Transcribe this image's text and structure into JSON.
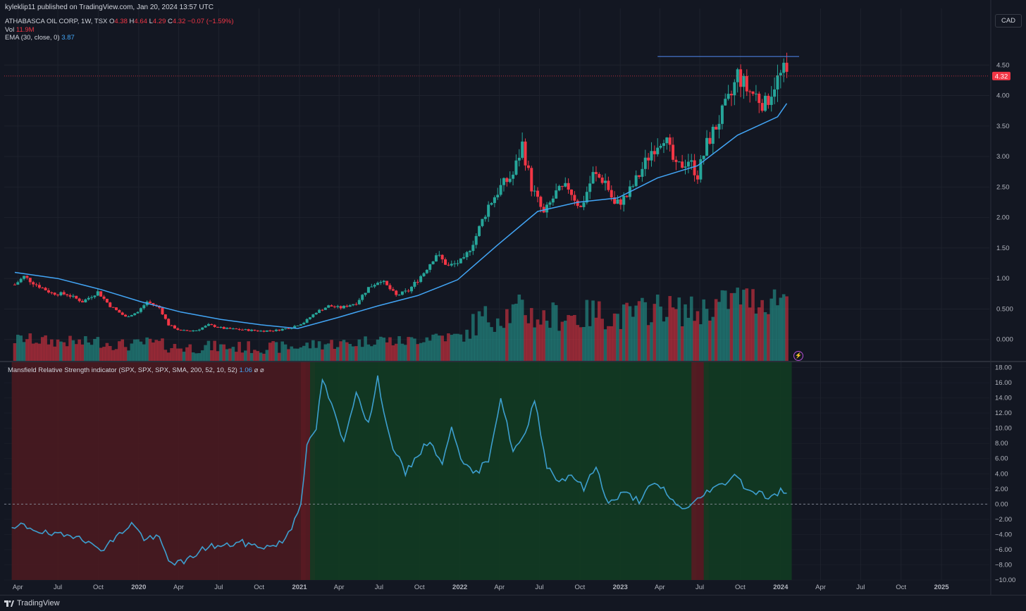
{
  "header": {
    "published": "kyleklip11 published on TradingView.com, Jan 20, 2024 13:57 UTC",
    "symbol": "ATHABASCA OIL CORP, 1W, TSX",
    "ohlc": {
      "o_label": "O",
      "o": "4.38",
      "h_label": "H",
      "h": "4.64",
      "l_label": "L",
      "l": "4.29",
      "c_label": "C",
      "c": "4.32",
      "change": "−0.07 (−1.59%)"
    },
    "vol_label": "Vol",
    "vol_value": "11.9M",
    "ema_label": "EMA (30, close, 0)",
    "ema_value": "3.87",
    "currency_button": "CAD"
  },
  "indicator": {
    "label": "Mansfield Relative Strength indicator (SPX, SPX, SPX, SMA, 200, 52, 10, 52)",
    "value": "1.06",
    "extra": "⌀  ⌀"
  },
  "footer": {
    "brand": "TradingView"
  },
  "colors": {
    "background": "#131722",
    "up": "#26a69a",
    "down": "#f23645",
    "ema": "#42a5f5",
    "rs_line": "#3d9fcf",
    "bg_red": "#4a1a20",
    "bg_green": "#123b22",
    "grid": "#1e222d"
  },
  "icons": [
    "tradingview-logo-icon",
    "lightning-icon"
  ],
  "chart_data": [
    {
      "type": "candlestick",
      "title": "ATHABASCA OIL CORP, 1W, TSX",
      "ylim": [
        -0.35,
        4.85
      ],
      "y_ticks": [
        "0.000",
        "0.500",
        "1.00",
        "1.50",
        "2.00",
        "2.50",
        "3.00",
        "3.50",
        "4.00",
        "4.50"
      ],
      "last_price": "4.32",
      "x_ticks": [
        "Apr",
        "Jul",
        "Oct",
        "2020",
        "Apr",
        "Jul",
        "Oct",
        "2021",
        "Apr",
        "Jul",
        "Oct",
        "2022",
        "Apr",
        "Jul",
        "Oct",
        "2023",
        "Apr",
        "Jul",
        "Oct",
        "2024",
        "Apr",
        "Jul",
        "Oct",
        "2025"
      ],
      "close_path": [
        [
          "2019-03-25",
          0.9
        ],
        [
          "2019-04-15",
          1.03
        ],
        [
          "2019-05-13",
          0.9
        ],
        [
          "2019-06-17",
          0.76
        ],
        [
          "2019-07-22",
          0.74
        ],
        [
          "2019-08-26",
          0.62
        ],
        [
          "2019-09-30",
          0.78
        ],
        [
          "2019-10-28",
          0.55
        ],
        [
          "2019-12-02",
          0.37
        ],
        [
          "2019-12-30",
          0.45
        ],
        [
          "2020-01-20",
          0.62
        ],
        [
          "2020-02-17",
          0.52
        ],
        [
          "2020-03-09",
          0.24
        ],
        [
          "2020-04-06",
          0.14
        ],
        [
          "2020-05-11",
          0.15
        ],
        [
          "2020-06-08",
          0.24
        ],
        [
          "2020-07-13",
          0.18
        ],
        [
          "2020-08-24",
          0.16
        ],
        [
          "2020-10-05",
          0.14
        ],
        [
          "2020-11-09",
          0.15
        ],
        [
          "2020-12-14",
          0.2
        ],
        [
          "2021-01-11",
          0.28
        ],
        [
          "2021-02-08",
          0.45
        ],
        [
          "2021-03-08",
          0.55
        ],
        [
          "2021-04-05",
          0.52
        ],
        [
          "2021-05-10",
          0.6
        ],
        [
          "2021-06-07",
          0.85
        ],
        [
          "2021-07-05",
          0.98
        ],
        [
          "2021-08-09",
          0.72
        ],
        [
          "2021-09-06",
          0.8
        ],
        [
          "2021-10-11",
          1.1
        ],
        [
          "2021-11-08",
          1.4
        ],
        [
          "2021-12-06",
          1.2
        ],
        [
          "2022-01-10",
          1.3
        ],
        [
          "2022-02-07",
          1.7
        ],
        [
          "2022-03-07",
          2.2
        ],
        [
          "2022-04-04",
          2.5
        ],
        [
          "2022-05-02",
          2.7
        ],
        [
          "2022-05-23",
          3.2
        ],
        [
          "2022-06-13",
          2.5
        ],
        [
          "2022-07-11",
          2.05
        ],
        [
          "2022-08-08",
          2.4
        ],
        [
          "2022-09-05",
          2.5
        ],
        [
          "2022-10-03",
          2.15
        ],
        [
          "2022-10-31",
          2.7
        ],
        [
          "2022-11-28",
          2.6
        ],
        [
          "2022-12-19",
          2.2
        ],
        [
          "2023-01-16",
          2.35
        ],
        [
          "2023-02-13",
          2.7
        ],
        [
          "2023-03-13",
          3.1
        ],
        [
          "2023-04-10",
          3.35
        ],
        [
          "2023-05-08",
          2.8
        ],
        [
          "2023-06-05",
          2.95
        ],
        [
          "2023-06-26",
          2.7
        ],
        [
          "2023-07-17",
          3.2
        ],
        [
          "2023-08-14",
          3.6
        ],
        [
          "2023-09-11",
          4.0
        ],
        [
          "2023-09-25",
          4.35
        ],
        [
          "2023-10-16",
          4.1
        ],
        [
          "2023-11-06",
          4.0
        ],
        [
          "2023-11-27",
          3.85
        ],
        [
          "2023-12-18",
          4.2
        ],
        [
          "2024-01-08",
          4.38
        ],
        [
          "2024-01-15",
          4.32
        ]
      ],
      "series": [
        {
          "name": "Vol",
          "last": "11.9M"
        },
        {
          "name": "EMA (30, close, 0)",
          "last": "3.87",
          "values": [
            [
              "2019-03-25",
              1.1
            ],
            [
              "2019-07-01",
              1.0
            ],
            [
              "2019-10-07",
              0.82
            ],
            [
              "2020-01-06",
              0.62
            ],
            [
              "2020-04-06",
              0.45
            ],
            [
              "2020-07-06",
              0.33
            ],
            [
              "2020-10-05",
              0.24
            ],
            [
              "2020-12-28",
              0.18
            ],
            [
              "2021-03-29",
              0.36
            ],
            [
              "2021-06-28",
              0.55
            ],
            [
              "2021-09-27",
              0.72
            ],
            [
              "2021-12-27",
              0.98
            ],
            [
              "2022-03-28",
              1.55
            ],
            [
              "2022-06-27",
              2.1
            ],
            [
              "2022-09-26",
              2.25
            ],
            [
              "2022-12-26",
              2.32
            ],
            [
              "2023-03-27",
              2.65
            ],
            [
              "2023-06-26",
              2.85
            ],
            [
              "2023-09-25",
              3.35
            ],
            [
              "2023-12-25",
              3.65
            ],
            [
              "2024-01-15",
              3.87
            ]
          ]
        }
      ]
    },
    {
      "type": "line",
      "title": "Mansfield Relative Strength indicator (SPX, SPX, SPX, SMA, 200, 52, 10, 52)",
      "ylim": [
        -10,
        18.7
      ],
      "y_ticks": [
        "−10.00",
        "−8.00",
        "−6.00",
        "−4.00",
        "−2.00",
        "0.00",
        "2.00",
        "4.00",
        "6.00",
        "8.00",
        "10.00",
        "12.00",
        "14.00",
        "16.00",
        "18.00"
      ],
      "last": "1.06",
      "regions": [
        {
          "from": "2019-03-18",
          "to": "2021-01-04",
          "color": "red"
        },
        {
          "from": "2021-01-04",
          "to": "2021-01-25",
          "color": "darkred"
        },
        {
          "from": "2021-01-25",
          "to": "2023-06-12",
          "color": "green"
        },
        {
          "from": "2023-06-12",
          "to": "2023-07-10",
          "color": "darkred"
        },
        {
          "from": "2023-07-10",
          "to": "2024-01-15",
          "color": "green"
        }
      ],
      "values": [
        [
          "2019-03-18",
          -3.5
        ],
        [
          "2019-04-08",
          -2.8
        ],
        [
          "2019-05-06",
          -3.2
        ],
        [
          "2019-06-10",
          -4.0
        ],
        [
          "2019-07-15",
          -4.2
        ],
        [
          "2019-08-19",
          -4.0
        ],
        [
          "2019-09-16",
          -5.5
        ],
        [
          "2019-10-14",
          -5.8
        ],
        [
          "2019-11-18",
          -4.0
        ],
        [
          "2019-12-16",
          -2.5
        ],
        [
          "2020-01-13",
          -4.5
        ],
        [
          "2020-02-17",
          -4.5
        ],
        [
          "2020-03-09",
          -7.5
        ],
        [
          "2020-04-13",
          -7.8
        ],
        [
          "2020-05-11",
          -6.5
        ],
        [
          "2020-06-08",
          -5.5
        ],
        [
          "2020-07-13",
          -5.6
        ],
        [
          "2020-08-17",
          -5.0
        ],
        [
          "2020-09-21",
          -5.5
        ],
        [
          "2020-10-26",
          -5.6
        ],
        [
          "2020-11-23",
          -5.0
        ],
        [
          "2020-12-14",
          -3.0
        ],
        [
          "2021-01-04",
          0.3
        ],
        [
          "2021-01-18",
          7.5
        ],
        [
          "2021-02-08",
          10.0
        ],
        [
          "2021-02-22",
          16.5
        ],
        [
          "2021-03-15",
          13.0
        ],
        [
          "2021-04-12",
          8.0
        ],
        [
          "2021-05-10",
          15.0
        ],
        [
          "2021-06-07",
          10.5
        ],
        [
          "2021-06-28",
          16.5
        ],
        [
          "2021-07-26",
          8.5
        ],
        [
          "2021-08-30",
          4.0
        ],
        [
          "2021-09-27",
          6.5
        ],
        [
          "2021-10-25",
          8.5
        ],
        [
          "2021-11-22",
          5.0
        ],
        [
          "2021-12-13",
          10.5
        ],
        [
          "2022-01-10",
          5.0
        ],
        [
          "2022-02-07",
          4.0
        ],
        [
          "2022-03-07",
          6.0
        ],
        [
          "2022-04-04",
          14.0
        ],
        [
          "2022-05-02",
          7.0
        ],
        [
          "2022-05-30",
          9.0
        ],
        [
          "2022-06-20",
          14.0
        ],
        [
          "2022-07-18",
          5.0
        ],
        [
          "2022-08-15",
          3.0
        ],
        [
          "2022-09-12",
          4.0
        ],
        [
          "2022-10-10",
          2.0
        ],
        [
          "2022-11-07",
          5.0
        ],
        [
          "2022-12-05",
          0.0
        ],
        [
          "2023-01-09",
          1.5
        ],
        [
          "2023-02-13",
          0.5
        ],
        [
          "2023-03-13",
          2.5
        ],
        [
          "2023-04-10",
          2.0
        ],
        [
          "2023-05-08",
          -0.2
        ],
        [
          "2023-06-05",
          -0.5
        ],
        [
          "2023-06-26",
          0.5
        ],
        [
          "2023-07-24",
          2.0
        ],
        [
          "2023-08-21",
          2.5
        ],
        [
          "2023-09-18",
          4.0
        ],
        [
          "2023-10-16",
          2.0
        ],
        [
          "2023-11-13",
          1.5
        ],
        [
          "2023-12-11",
          0.8
        ],
        [
          "2024-01-01",
          1.8
        ],
        [
          "2024-01-15",
          1.06
        ]
      ]
    }
  ]
}
